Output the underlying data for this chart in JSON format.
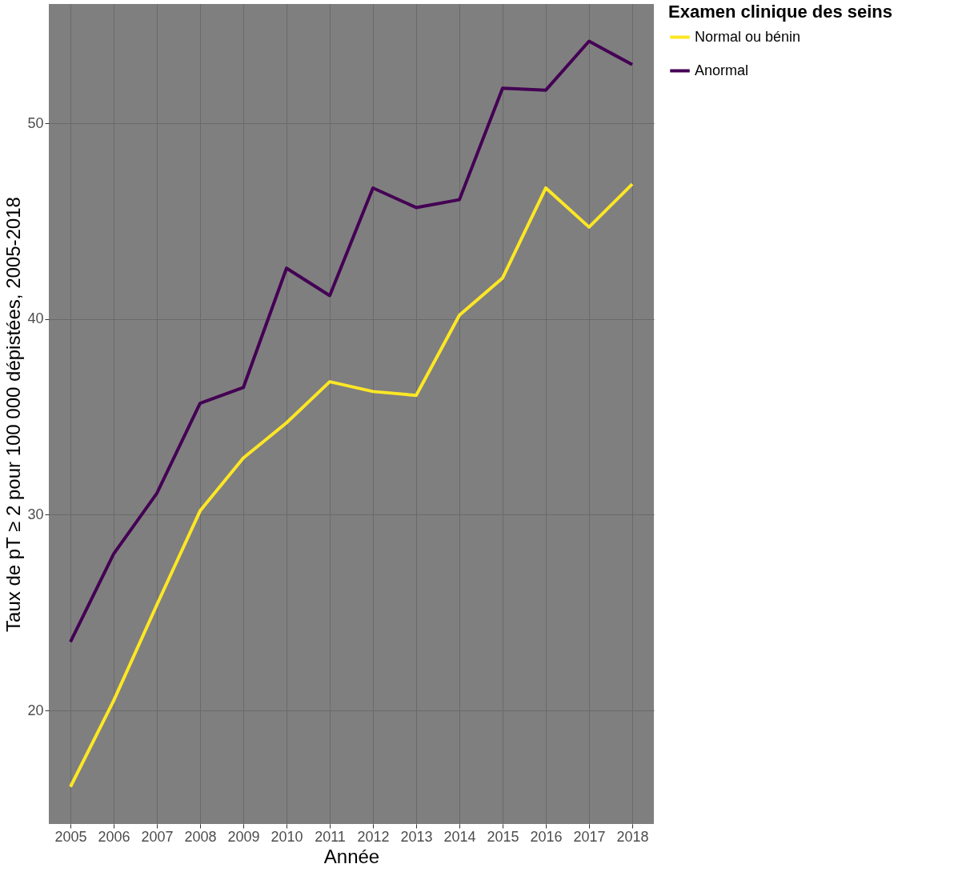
{
  "chart_data": {
    "type": "line",
    "xlabel": "Année",
    "ylabel": "Taux de pT ≥ 2 pour 100 000 dépistées, 2005-2018",
    "legend_title": "Examen clinique des seins",
    "legend": "right",
    "grid": true,
    "categories": [
      "2005",
      "2006",
      "2007",
      "2008",
      "2009",
      "2010",
      "2011",
      "2012",
      "2013",
      "2014",
      "2015",
      "2016",
      "2017",
      "2018"
    ],
    "ylim": [
      14.2,
      56.1
    ],
    "yticks": [
      20,
      30,
      40,
      50
    ],
    "series": [
      {
        "name": "Normal ou bénin",
        "color": "#fde725",
        "values": [
          16.1,
          20.5,
          25.4,
          30.2,
          32.9,
          34.7,
          36.8,
          36.3,
          36.1,
          40.2,
          42.1,
          46.7,
          44.7,
          46.9
        ]
      },
      {
        "name": "Anormal",
        "color": "#440154",
        "values": [
          23.5,
          28.0,
          31.1,
          35.7,
          36.5,
          42.6,
          41.2,
          46.7,
          45.7,
          46.1,
          51.8,
          51.7,
          54.2,
          53.0
        ]
      }
    ]
  }
}
